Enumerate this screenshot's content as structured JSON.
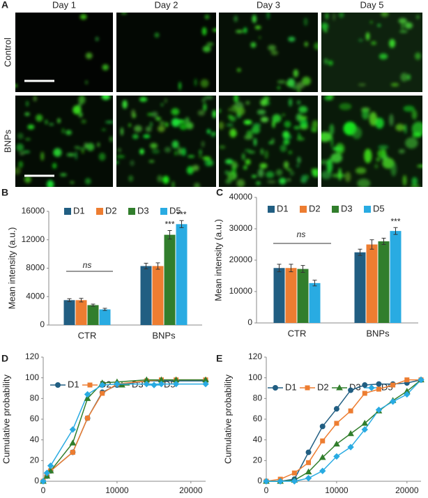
{
  "panel_labels": [
    "A",
    "B",
    "C",
    "D",
    "E"
  ],
  "image_grid": {
    "columns": [
      "Day 1",
      "Day 2",
      "Day 3",
      "Day 5"
    ],
    "rows": [
      "Control",
      "BNPs"
    ]
  },
  "chart_data": [
    {
      "type": "bar",
      "y_label": "Mean intensity (a.u.)",
      "categories": [
        "CTR",
        "BNPs"
      ],
      "series": [
        {
          "name": "D1",
          "color": "#215e82",
          "values": [
            3500,
            8300
          ],
          "errors": [
            200,
            400
          ]
        },
        {
          "name": "D2",
          "color": "#ed7d31",
          "values": [
            3500,
            8300
          ],
          "errors": [
            250,
            450
          ]
        },
        {
          "name": "D3",
          "color": "#317e2c",
          "values": [
            2800,
            12700
          ],
          "errors": [
            150,
            600
          ]
        },
        {
          "name": "D5",
          "color": "#29abe2",
          "values": [
            2200,
            14200
          ],
          "errors": [
            150,
            500
          ]
        }
      ],
      "ylim": [
        0,
        16000
      ],
      "yticks": [
        0,
        4000,
        8000,
        12000,
        16000
      ],
      "legend": "top",
      "annotations": [
        {
          "text": "ns"
        },
        {
          "text": "***"
        },
        {
          "text": "***"
        }
      ]
    },
    {
      "type": "bar",
      "y_label": "Mean intensity (a.u.)",
      "categories": [
        "CTR",
        "BNPs"
      ],
      "series": [
        {
          "name": "D1",
          "color": "#215e82",
          "values": [
            17500,
            22500
          ],
          "errors": [
            1200,
            1000
          ]
        },
        {
          "name": "D2",
          "color": "#ed7d31",
          "values": [
            17500,
            25000
          ],
          "errors": [
            1200,
            1500
          ]
        },
        {
          "name": "D3",
          "color": "#317e2c",
          "values": [
            17200,
            26000
          ],
          "errors": [
            1100,
            1000
          ]
        },
        {
          "name": "D5",
          "color": "#29abe2",
          "values": [
            12700,
            29300
          ],
          "errors": [
            900,
            1100
          ]
        }
      ],
      "ylim": [
        0,
        40000
      ],
      "yticks": [
        0,
        10000,
        20000,
        30000,
        40000
      ],
      "legend": "top",
      "annotations": [
        {
          "text": "ns"
        },
        {
          "text": "***"
        }
      ]
    },
    {
      "type": "line",
      "y_label": "Cumulative probability",
      "x": [
        0,
        500,
        1000,
        4000,
        6000,
        8000,
        10000,
        14000,
        16000,
        18000,
        22000
      ],
      "series": [
        {
          "name": "D1",
          "color": "#215e82",
          "marker": "circle",
          "values": [
            0,
            5,
            10,
            28,
            61,
            86,
            93,
            97,
            97,
            97,
            97
          ]
        },
        {
          "name": "D2",
          "color": "#ed7d31",
          "marker": "square",
          "values": [
            0,
            5,
            10,
            28,
            61,
            85,
            94,
            97,
            98,
            98,
            98
          ]
        },
        {
          "name": "D3",
          "color": "#317e2c",
          "marker": "triangle",
          "values": [
            0,
            5,
            10,
            37,
            80,
            95,
            96,
            98,
            98,
            98,
            98
          ]
        },
        {
          "name": "D5",
          "color": "#29abe2",
          "marker": "diamond",
          "values": [
            0,
            8,
            15,
            50,
            84,
            93,
            94,
            94,
            94,
            94,
            94
          ]
        }
      ],
      "xlim": [
        0,
        22000
      ],
      "xticks": [
        0,
        10000,
        20000
      ],
      "ylim": [
        0,
        120
      ],
      "yticks": [
        0,
        20,
        40,
        60,
        80,
        100,
        120
      ],
      "legend": "top"
    },
    {
      "type": "line",
      "y_label": "Cumulative probability",
      "x": [
        0,
        2000,
        4000,
        6000,
        8000,
        10000,
        12000,
        14000,
        16000,
        18000,
        20000,
        22000
      ],
      "series": [
        {
          "name": "D1",
          "color": "#215e82",
          "marker": "circle",
          "values": [
            0,
            0,
            2,
            28,
            53,
            70,
            88,
            93,
            94,
            94,
            95,
            98
          ]
        },
        {
          "name": "D2",
          "color": "#ed7d31",
          "marker": "square",
          "values": [
            0,
            2,
            8,
            18,
            39,
            56,
            68,
            85,
            89,
            93,
            98,
            98
          ]
        },
        {
          "name": "D3",
          "color": "#317e2c",
          "marker": "triangle",
          "values": [
            0,
            0,
            1,
            9,
            23,
            36,
            46,
            56,
            68,
            78,
            87,
            98
          ]
        },
        {
          "name": "D5",
          "color": "#29abe2",
          "marker": "diamond",
          "values": [
            0,
            0,
            0,
            3,
            10,
            24,
            33,
            50,
            69,
            77,
            84,
            98
          ]
        }
      ],
      "xlim": [
        0,
        22000
      ],
      "xticks": [
        0,
        10000,
        20000
      ],
      "ylim": [
        0,
        120
      ],
      "yticks": [
        0,
        20,
        40,
        60,
        80,
        100,
        120
      ],
      "legend": "top"
    }
  ]
}
